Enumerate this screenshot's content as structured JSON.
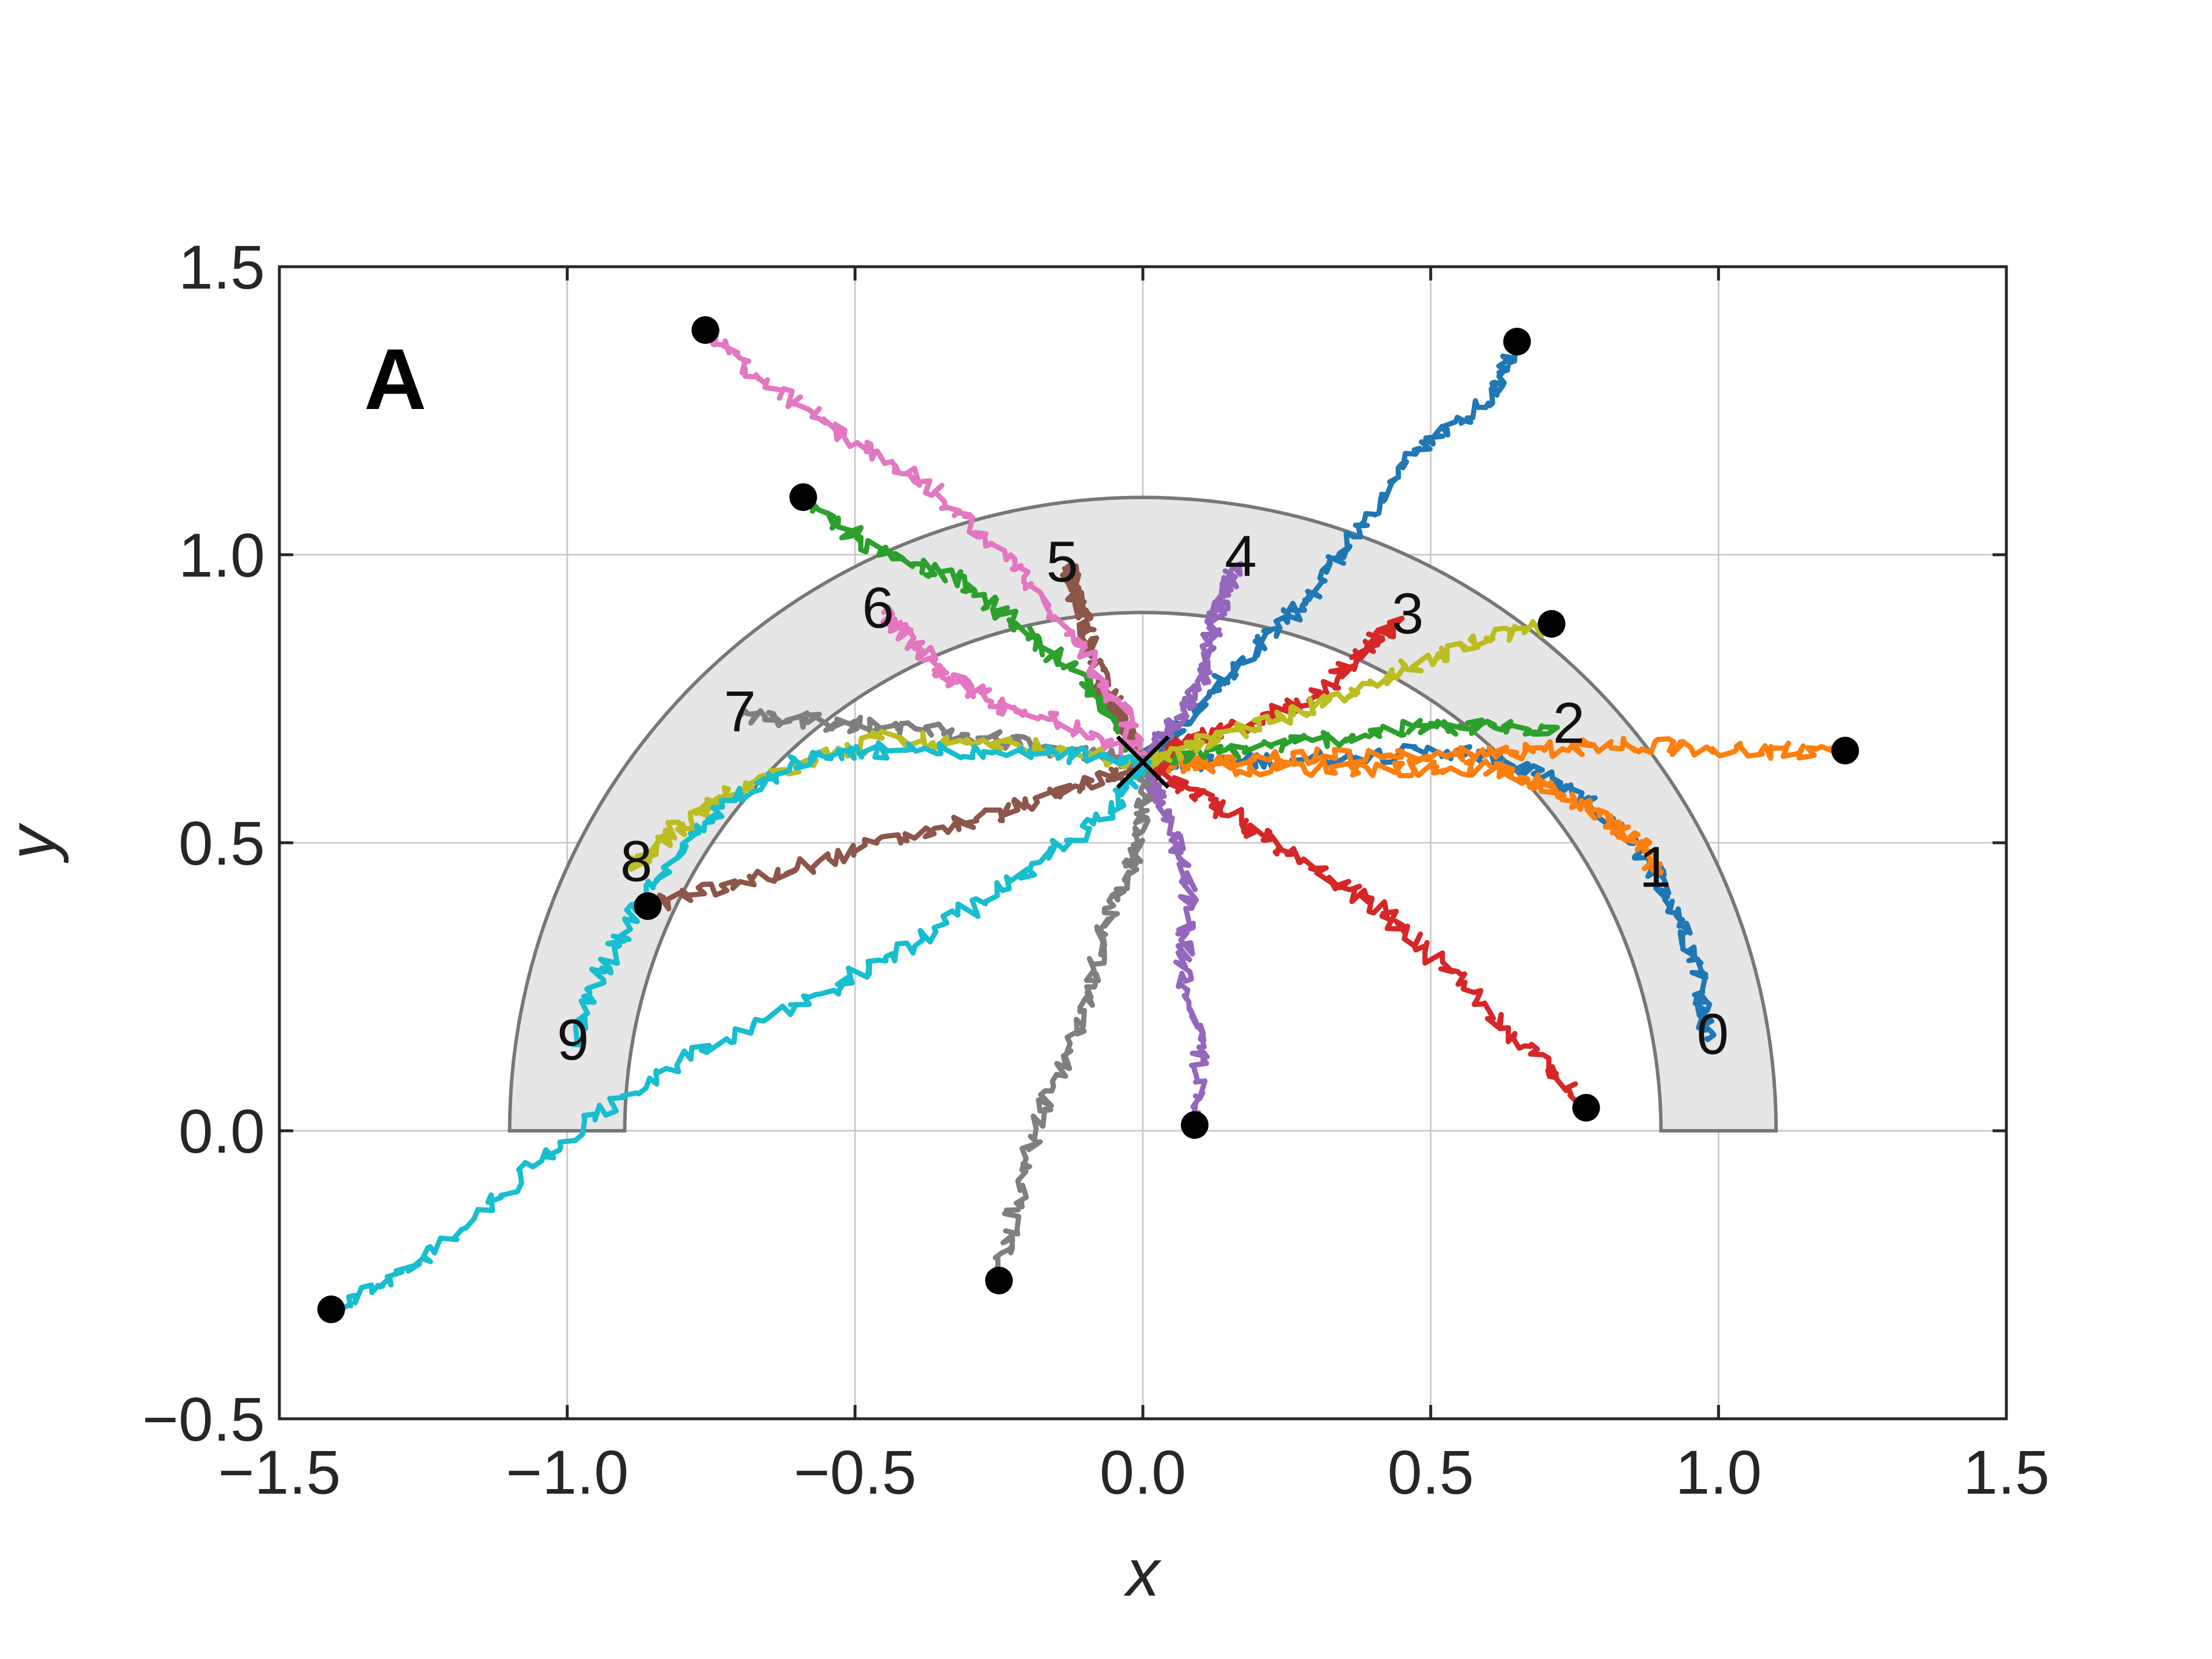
{
  "chart_data": {
    "type": "line",
    "panel_label": "A",
    "xlabel": "x",
    "ylabel": "y",
    "xlim": [
      -1.5,
      1.5
    ],
    "ylim": [
      -0.5,
      1.5
    ],
    "x_ticks": [
      -1.5,
      -1.0,
      -0.5,
      0.0,
      0.5,
      1.0,
      1.5
    ],
    "x_tick_labels": [
      "−1.5",
      "−1.0",
      "−0.5",
      "0.0",
      "0.5",
      "1.0",
      "1.5"
    ],
    "y_ticks": [
      -0.5,
      0.0,
      0.5,
      1.0,
      1.5
    ],
    "y_tick_labels": [
      "−0.5",
      "0.0",
      "0.5",
      "1.0",
      "1.5"
    ],
    "grid": true,
    "annulus": {
      "center": [
        0.0,
        0.0
      ],
      "inner_radius": 0.9,
      "outer_radius": 1.1,
      "fill": "#e6e6e6",
      "stroke": "#777777"
    },
    "marker_x": {
      "position": [
        0.0,
        0.64
      ],
      "color": "#000000"
    },
    "series": [
      {
        "label": "0",
        "color": "#1f77b4",
        "label_pos": [
          0.99,
          0.16
        ],
        "start": [
          0.65,
          1.37
        ],
        "points": [
          [
            0.65,
            1.37
          ],
          [
            0.6,
            1.27
          ],
          [
            0.48,
            1.18
          ],
          [
            0.38,
            1.05
          ],
          [
            0.3,
            0.94
          ],
          [
            0.22,
            0.86
          ],
          [
            0.14,
            0.78
          ],
          [
            0.06,
            0.7
          ],
          [
            0.0,
            0.64
          ],
          [
            0.15,
            0.64
          ],
          [
            0.35,
            0.65
          ],
          [
            0.55,
            0.66
          ],
          [
            0.66,
            0.63
          ],
          [
            0.77,
            0.57
          ],
          [
            0.87,
            0.48
          ],
          [
            0.93,
            0.38
          ],
          [
            0.97,
            0.27
          ],
          [
            0.98,
            0.16
          ]
        ]
      },
      {
        "label": "1",
        "color": "#ff7f0e",
        "label_pos": [
          0.89,
          0.45
        ],
        "start": [
          1.22,
          0.66
        ],
        "points": [
          [
            1.22,
            0.66
          ],
          [
            1.05,
            0.66
          ],
          [
            0.85,
            0.67
          ],
          [
            0.68,
            0.66
          ],
          [
            0.52,
            0.65
          ],
          [
            0.3,
            0.65
          ],
          [
            0.1,
            0.64
          ],
          [
            0.0,
            0.64
          ],
          [
            0.2,
            0.63
          ],
          [
            0.45,
            0.63
          ],
          [
            0.6,
            0.63
          ],
          [
            0.7,
            0.6
          ],
          [
            0.79,
            0.55
          ],
          [
            0.86,
            0.5
          ],
          [
            0.9,
            0.45
          ]
        ]
      },
      {
        "label": "2",
        "color": "#2ca02c",
        "label_pos": [
          0.74,
          0.7
        ],
        "start": [
          -0.59,
          1.1
        ],
        "points": [
          [
            -0.59,
            1.1
          ],
          [
            -0.48,
            1.02
          ],
          [
            -0.33,
            0.96
          ],
          [
            -0.22,
            0.88
          ],
          [
            -0.12,
            0.8
          ],
          [
            -0.05,
            0.72
          ],
          [
            0.0,
            0.64
          ],
          [
            0.15,
            0.66
          ],
          [
            0.32,
            0.68
          ],
          [
            0.48,
            0.7
          ],
          [
            0.6,
            0.7
          ],
          [
            0.72,
            0.7
          ]
        ]
      },
      {
        "label": "3",
        "color": "#d62728",
        "label_pos": [
          0.46,
          0.89
        ],
        "start": [
          0.77,
          0.04
        ],
        "points": [
          [
            0.77,
            0.04
          ],
          [
            0.66,
            0.15
          ],
          [
            0.53,
            0.28
          ],
          [
            0.42,
            0.38
          ],
          [
            0.3,
            0.45
          ],
          [
            0.2,
            0.52
          ],
          [
            0.1,
            0.58
          ],
          [
            0.0,
            0.64
          ],
          [
            0.1,
            0.68
          ],
          [
            0.22,
            0.72
          ],
          [
            0.32,
            0.77
          ],
          [
            0.38,
            0.83
          ],
          [
            0.44,
            0.88
          ]
        ]
      },
      {
        "label": "4",
        "color": "#9467bd",
        "label_pos": [
          0.17,
          0.99
        ],
        "start": [
          0.09,
          0.01
        ],
        "points": [
          [
            0.09,
            0.01
          ],
          [
            0.1,
            0.14
          ],
          [
            0.07,
            0.28
          ],
          [
            0.08,
            0.42
          ],
          [
            0.05,
            0.52
          ],
          [
            0.02,
            0.6
          ],
          [
            0.0,
            0.64
          ],
          [
            0.05,
            0.7
          ],
          [
            0.1,
            0.78
          ],
          [
            0.12,
            0.86
          ],
          [
            0.14,
            0.93
          ],
          [
            0.16,
            0.98
          ]
        ]
      },
      {
        "label": "5",
        "color": "#8c564b",
        "label_pos": [
          -0.14,
          0.98
        ],
        "start": [
          -0.86,
          0.39
        ],
        "points": [
          [
            -0.86,
            0.39
          ],
          [
            -0.65,
            0.44
          ],
          [
            -0.45,
            0.5
          ],
          [
            -0.25,
            0.55
          ],
          [
            -0.1,
            0.6
          ],
          [
            0.0,
            0.64
          ],
          [
            -0.04,
            0.72
          ],
          [
            -0.08,
            0.8
          ],
          [
            -0.1,
            0.88
          ],
          [
            -0.12,
            0.94
          ],
          [
            -0.13,
            0.98
          ]
        ]
      },
      {
        "label": "6",
        "color": "#e377c2",
        "label_pos": [
          -0.46,
          0.9
        ],
        "start": [
          -0.76,
          1.39
        ],
        "points": [
          [
            -0.76,
            1.39
          ],
          [
            -0.65,
            1.29
          ],
          [
            -0.5,
            1.2
          ],
          [
            -0.35,
            1.1
          ],
          [
            -0.22,
            0.98
          ],
          [
            -0.12,
            0.86
          ],
          [
            -0.04,
            0.74
          ],
          [
            0.0,
            0.64
          ],
          [
            -0.12,
            0.7
          ],
          [
            -0.25,
            0.74
          ],
          [
            -0.34,
            0.79
          ],
          [
            -0.4,
            0.85
          ],
          [
            -0.45,
            0.9
          ]
        ]
      },
      {
        "label": "7",
        "color": "#7f7f7f",
        "label_pos": [
          -0.7,
          0.72
        ],
        "start": [
          -0.25,
          -0.26
        ],
        "points": [
          [
            -0.25,
            -0.26
          ],
          [
            -0.22,
            -0.12
          ],
          [
            -0.17,
            0.05
          ],
          [
            -0.1,
            0.2
          ],
          [
            -0.07,
            0.35
          ],
          [
            -0.02,
            0.45
          ],
          [
            0.0,
            0.55
          ],
          [
            0.0,
            0.64
          ],
          [
            -0.2,
            0.67
          ],
          [
            -0.4,
            0.7
          ],
          [
            -0.55,
            0.71
          ],
          [
            -0.7,
            0.72
          ]
        ]
      },
      {
        "label": "8",
        "color": "#bcbd22",
        "label_pos": [
          -0.88,
          0.46
        ],
        "start": [
          0.71,
          0.88
        ],
        "points": [
          [
            0.71,
            0.88
          ],
          [
            0.56,
            0.84
          ],
          [
            0.4,
            0.78
          ],
          [
            0.25,
            0.72
          ],
          [
            0.1,
            0.67
          ],
          [
            0.0,
            0.64
          ],
          [
            -0.22,
            0.67
          ],
          [
            -0.45,
            0.68
          ],
          [
            -0.62,
            0.63
          ],
          [
            -0.74,
            0.57
          ],
          [
            -0.83,
            0.51
          ],
          [
            -0.88,
            0.46
          ]
        ]
      },
      {
        "label": "9",
        "color": "#17becf",
        "label_pos": [
          -0.99,
          0.15
        ],
        "start": [
          -1.41,
          -0.31
        ],
        "points": [
          [
            -1.41,
            -0.31
          ],
          [
            -1.25,
            -0.23
          ],
          [
            -1.05,
            -0.05
          ],
          [
            -0.85,
            0.1
          ],
          [
            -0.6,
            0.22
          ],
          [
            -0.4,
            0.32
          ],
          [
            -0.2,
            0.45
          ],
          [
            -0.05,
            0.56
          ],
          [
            0.0,
            0.64
          ],
          [
            -0.2,
            0.66
          ],
          [
            -0.45,
            0.66
          ],
          [
            -0.6,
            0.64
          ],
          [
            -0.75,
            0.55
          ],
          [
            -0.86,
            0.42
          ],
          [
            -0.94,
            0.28
          ],
          [
            -0.99,
            0.15
          ]
        ]
      }
    ]
  }
}
